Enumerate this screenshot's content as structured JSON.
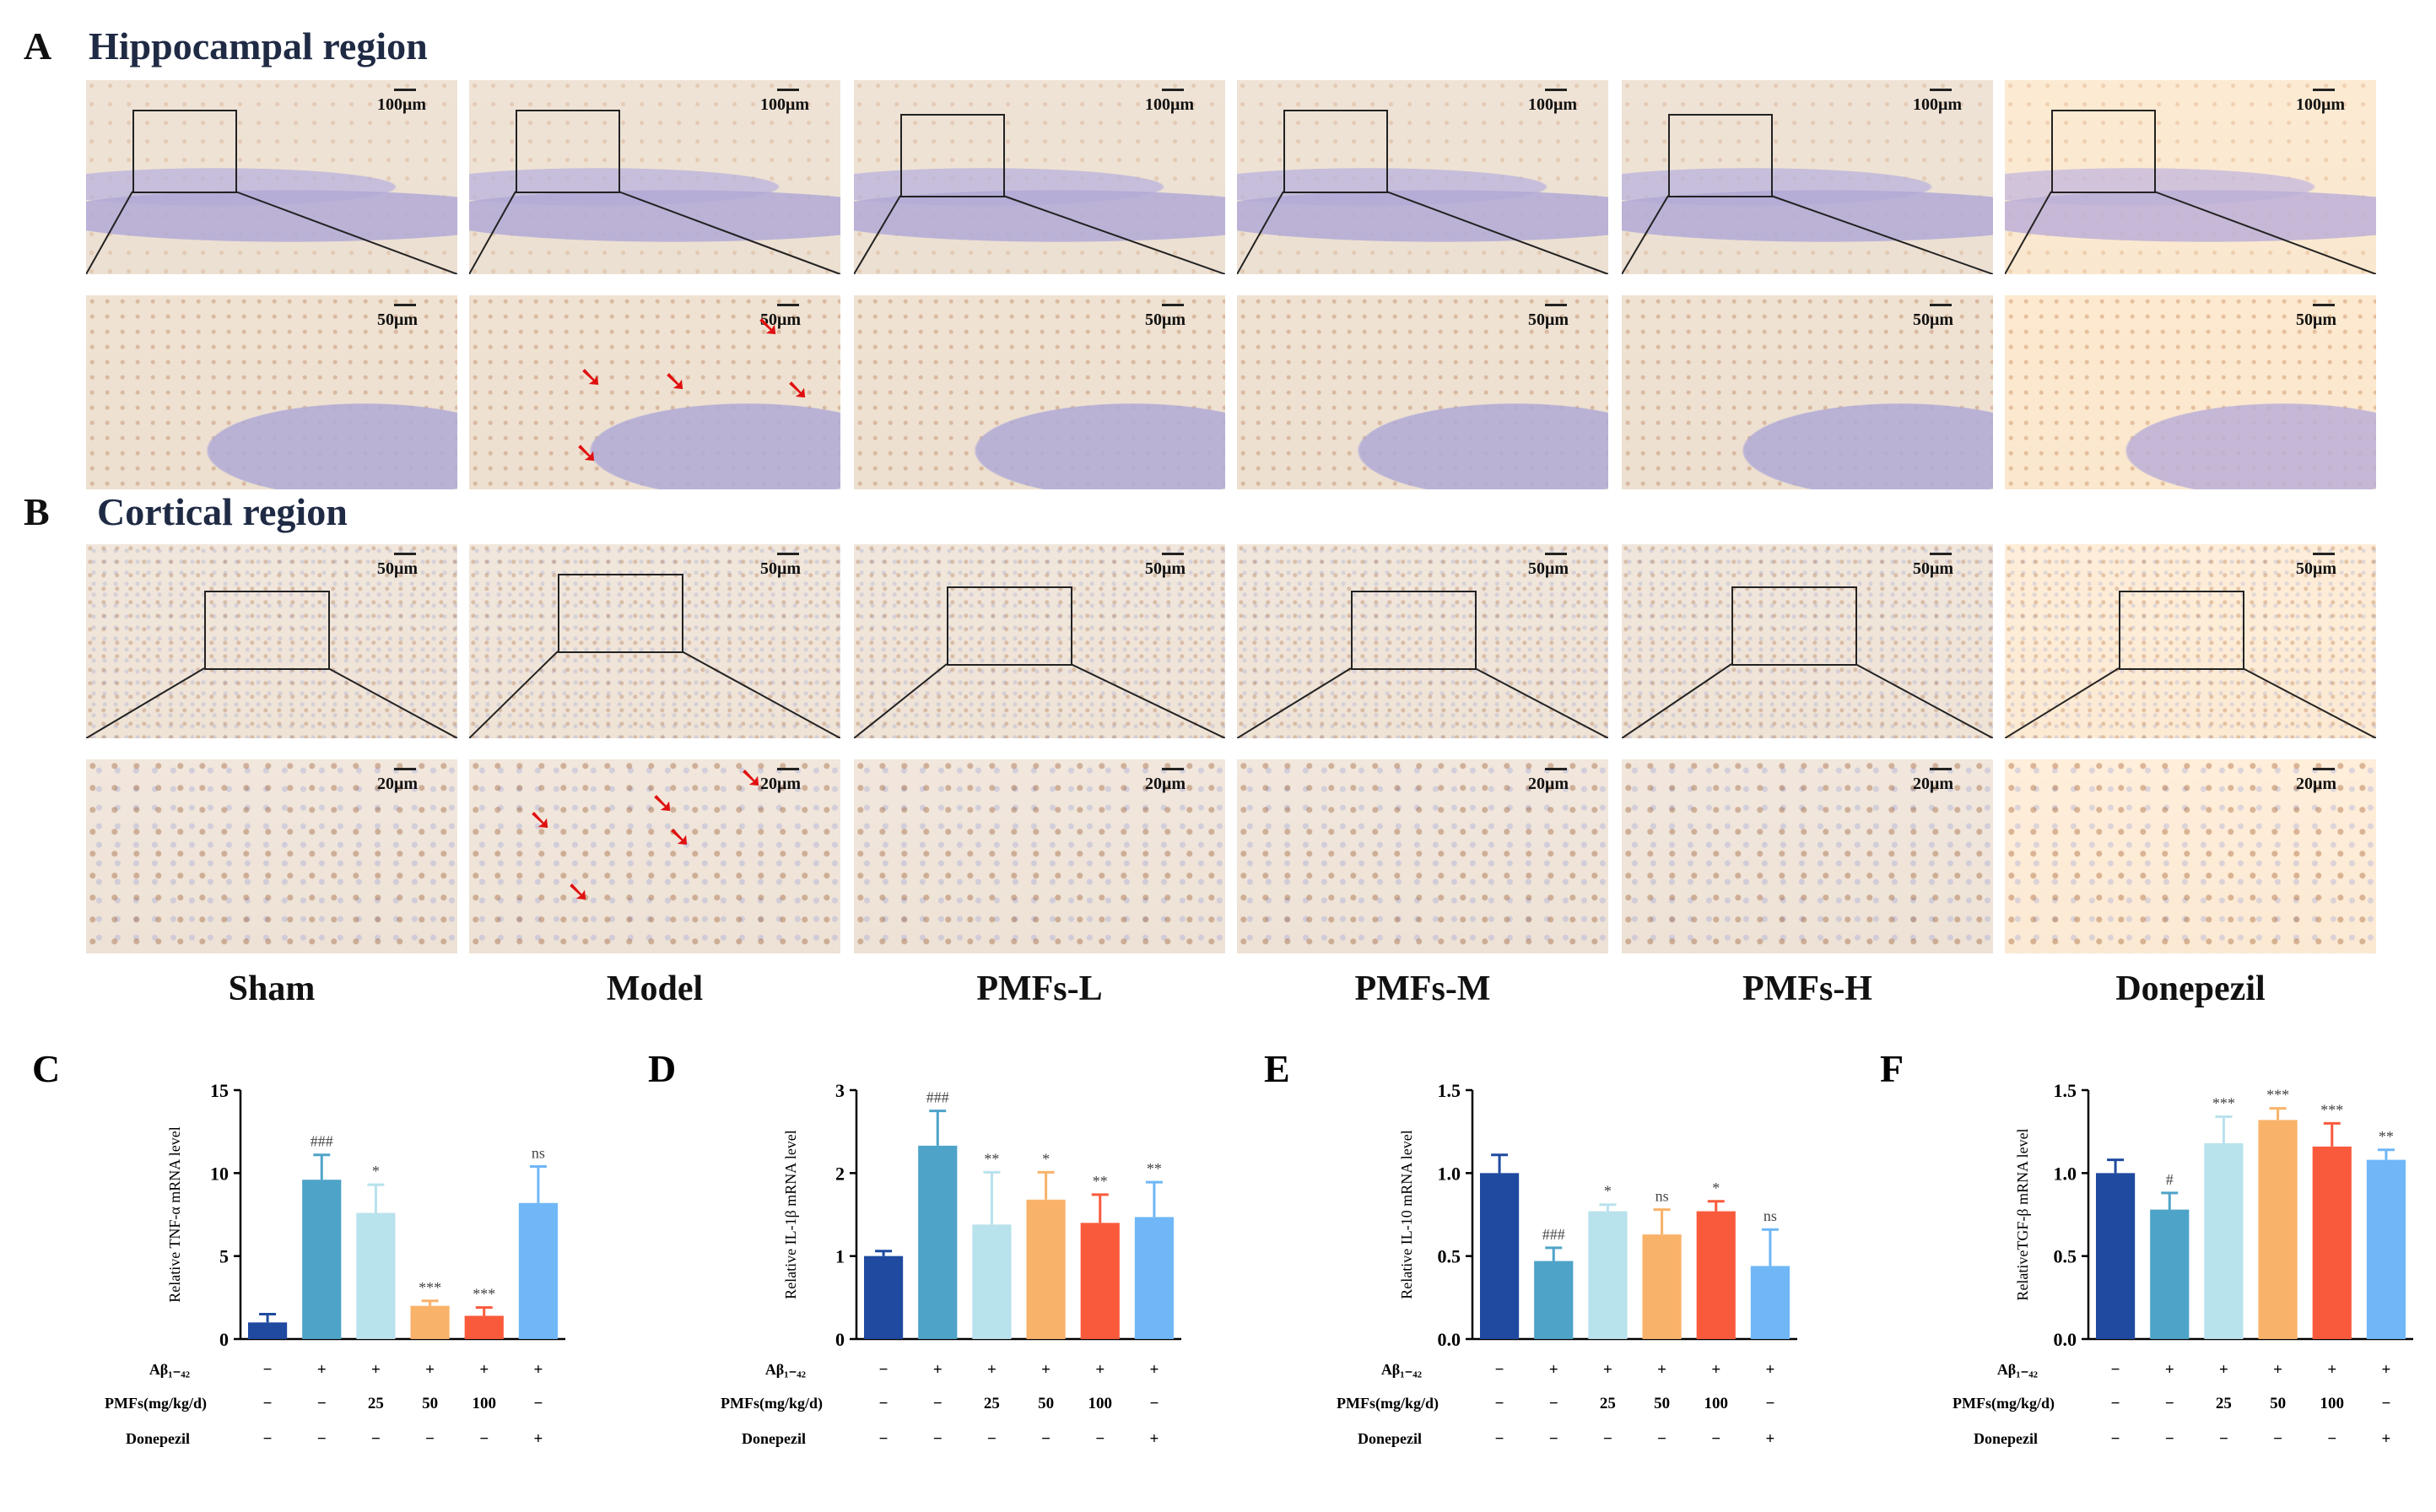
{
  "sections": {
    "A": {
      "letter": "A",
      "title": "Hippocampal region"
    },
    "B": {
      "letter": "B",
      "title": "Cortical region"
    }
  },
  "groups": [
    "Sham",
    "Model",
    "PMFs-L",
    "PMFs-M",
    "PMFs-H",
    "Donepezil"
  ],
  "scale_labels": {
    "a_overview": "100μm",
    "a_zoom": "50μm",
    "b_overview": "50μm",
    "b_zoom": "20μm"
  },
  "arrow_glyph": "➘",
  "treatment_table": {
    "row_labels": [
      "Aβ₁₋₄₂",
      "PMFs(mg/kg/d)",
      "Donepezil"
    ],
    "rows": [
      [
        "−",
        "+",
        "+",
        "+",
        "+",
        "+"
      ],
      [
        "−",
        "−",
        "25",
        "50",
        "100",
        "−"
      ],
      [
        "−",
        "−",
        "−",
        "−",
        "−",
        "+"
      ]
    ]
  },
  "series_colors": [
    "#1f4aa0",
    "#4ea3c8",
    "#b8e2ec",
    "#f9b26a",
    "#fa5a3c",
    "#6fb7f7"
  ],
  "chart_data": [
    {
      "panel": "C",
      "type": "bar",
      "categories": [
        "Sham",
        "Model",
        "PMFs-L",
        "PMFs-M",
        "PMFs-H",
        "Donepezil"
      ],
      "values": [
        1.0,
        9.6,
        7.6,
        2.0,
        1.4,
        8.2
      ],
      "errors": [
        0.5,
        1.5,
        1.7,
        0.3,
        0.5,
        2.2
      ],
      "significance": [
        "",
        "###",
        "*",
        "***",
        "***",
        "ns"
      ],
      "ylabel": "Relative TNF-α mRNA level",
      "ylim": [
        0,
        15
      ],
      "yticks": [
        0,
        5,
        10,
        15
      ]
    },
    {
      "panel": "D",
      "type": "bar",
      "categories": [
        "Sham",
        "Model",
        "PMFs-L",
        "PMFs-M",
        "PMFs-H",
        "Donepezil"
      ],
      "values": [
        1.0,
        2.33,
        1.38,
        1.68,
        1.4,
        1.47
      ],
      "errors": [
        0.06,
        0.42,
        0.63,
        0.33,
        0.34,
        0.42
      ],
      "significance": [
        "",
        "###",
        "**",
        "*",
        "**",
        "**"
      ],
      "ylabel": "Relative IL-1β mRNA level",
      "ylim": [
        0,
        3
      ],
      "yticks": [
        0,
        1,
        2,
        3
      ]
    },
    {
      "panel": "E",
      "type": "bar",
      "categories": [
        "Sham",
        "Model",
        "PMFs-L",
        "PMFs-M",
        "PMFs-H",
        "Donepezil"
      ],
      "values": [
        1.0,
        0.47,
        0.77,
        0.63,
        0.77,
        0.44
      ],
      "errors": [
        0.11,
        0.08,
        0.04,
        0.15,
        0.06,
        0.22
      ],
      "significance": [
        "",
        "###",
        "*",
        "ns",
        "*",
        "ns"
      ],
      "ylabel": "Relative IL-10 mRNA level",
      "ylim": [
        0,
        1.5
      ],
      "yticks": [
        0.0,
        0.5,
        1.0,
        1.5
      ]
    },
    {
      "panel": "F",
      "type": "bar",
      "categories": [
        "Sham",
        "Model",
        "PMFs-L",
        "PMFs-M",
        "PMFs-H",
        "Donepezil"
      ],
      "values": [
        1.0,
        0.78,
        1.18,
        1.32,
        1.16,
        1.08
      ],
      "errors": [
        0.08,
        0.1,
        0.16,
        0.07,
        0.14,
        0.06
      ],
      "significance": [
        "",
        "#",
        "***",
        "***",
        "***",
        "**"
      ],
      "ylabel": "RelativeTGF-β mRNA level",
      "ylim": [
        0,
        1.5
      ],
      "yticks": [
        0.0,
        0.5,
        1.0,
        1.5
      ]
    }
  ]
}
